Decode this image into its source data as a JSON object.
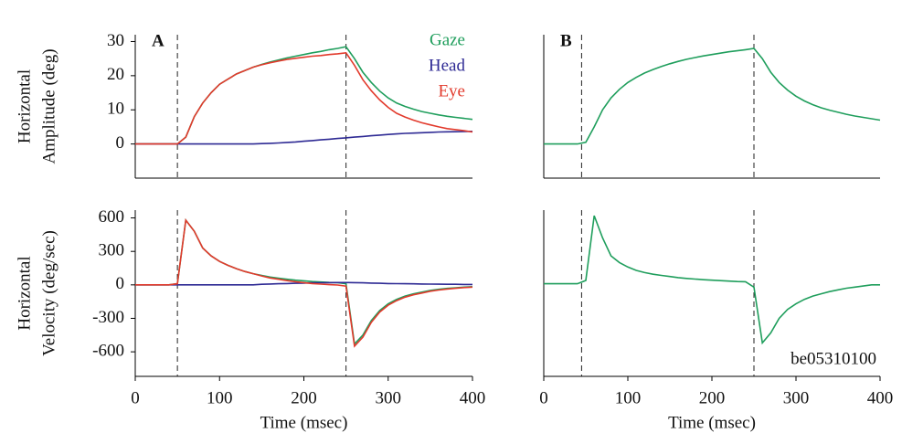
{
  "chart_data": [
    {
      "type": "line",
      "panel_label": "A",
      "y_label": [
        "Horizontal",
        "Amplitude (deg)"
      ],
      "legend": "upper right",
      "x": [
        0,
        10,
        20,
        30,
        40,
        50,
        60,
        70,
        80,
        90,
        100,
        110,
        120,
        130,
        140,
        150,
        160,
        170,
        180,
        190,
        200,
        210,
        220,
        230,
        240,
        250,
        260,
        270,
        280,
        290,
        300,
        310,
        320,
        330,
        340,
        350,
        360,
        370,
        380,
        390,
        400
      ],
      "xlim": [
        0,
        400
      ],
      "ylim": [
        -10,
        32
      ],
      "yticks": [
        0,
        10,
        20,
        30
      ],
      "vlines": [
        50,
        250
      ],
      "series": [
        {
          "name": "Gaze",
          "color": "#1f9e5c",
          "values": [
            0,
            0,
            0,
            0,
            0,
            0,
            2,
            8,
            12,
            15,
            17.5,
            19,
            20.5,
            21.5,
            22.5,
            23.3,
            24,
            24.6,
            25.2,
            25.7,
            26.2,
            26.7,
            27.1,
            27.6,
            28,
            28.5,
            25,
            21,
            18,
            15.5,
            13.5,
            12,
            11,
            10.2,
            9.5,
            9,
            8.5,
            8.1,
            7.8,
            7.5,
            7.2
          ]
        },
        {
          "name": "Head",
          "color": "#2e2a94",
          "values": [
            0,
            0,
            0,
            0,
            0,
            0,
            0,
            0,
            0,
            0,
            0,
            0,
            0,
            0,
            0,
            0.1,
            0.2,
            0.3,
            0.45,
            0.6,
            0.8,
            1,
            1.2,
            1.4,
            1.6,
            1.8,
            2,
            2.2,
            2.4,
            2.6,
            2.8,
            2.95,
            3.1,
            3.2,
            3.3,
            3.4,
            3.5,
            3.55,
            3.6,
            3.65,
            3.7
          ]
        },
        {
          "name": "Eye",
          "color": "#e23a2c",
          "values": [
            0,
            0,
            0,
            0,
            0,
            0,
            2,
            8,
            12,
            15,
            17.5,
            19,
            20.5,
            21.5,
            22.5,
            23.2,
            23.8,
            24.3,
            24.75,
            25.1,
            25.4,
            25.7,
            25.9,
            26.2,
            26.4,
            26.7,
            23,
            18.8,
            15.6,
            12.9,
            10.7,
            9,
            7.9,
            7,
            6.2,
            5.6,
            5,
            4.5,
            4.2,
            3.9,
            3.5
          ]
        }
      ]
    },
    {
      "type": "line",
      "panel_label": "B",
      "x": [
        0,
        10,
        20,
        30,
        40,
        50,
        60,
        70,
        80,
        90,
        100,
        110,
        120,
        130,
        140,
        150,
        160,
        170,
        180,
        190,
        200,
        210,
        220,
        230,
        240,
        250,
        260,
        270,
        280,
        290,
        300,
        310,
        320,
        330,
        340,
        350,
        360,
        370,
        380,
        390,
        400
      ],
      "xlim": [
        0,
        400
      ],
      "ylim": [
        -10,
        32
      ],
      "vlines": [
        45,
        250
      ],
      "series": [
        {
          "name": "Gaze",
          "color": "#1f9e5c",
          "values": [
            0,
            0,
            0,
            0,
            0,
            0.5,
            5,
            10,
            13.5,
            16,
            18,
            19.5,
            20.8,
            21.8,
            22.7,
            23.5,
            24.2,
            24.8,
            25.3,
            25.8,
            26.2,
            26.6,
            27,
            27.3,
            27.6,
            28,
            25,
            21,
            18,
            15.8,
            14,
            12.6,
            11.5,
            10.6,
            9.9,
            9.3,
            8.7,
            8.2,
            7.8,
            7.4,
            7
          ]
        }
      ]
    },
    {
      "type": "line",
      "y_label": [
        "Horizontal",
        "Velocity (deg/sec)"
      ],
      "x_label": "Time (msec)",
      "x": [
        0,
        10,
        20,
        30,
        40,
        50,
        60,
        70,
        80,
        90,
        100,
        110,
        120,
        130,
        140,
        150,
        160,
        170,
        180,
        190,
        200,
        210,
        220,
        230,
        240,
        250,
        260,
        270,
        280,
        290,
        300,
        310,
        320,
        330,
        340,
        350,
        360,
        370,
        380,
        390,
        400
      ],
      "xlim": [
        0,
        400
      ],
      "xticks": [
        0,
        100,
        200,
        300,
        400
      ],
      "ylim": [
        -820,
        670
      ],
      "yticks": [
        -600,
        -300,
        0,
        300,
        600
      ],
      "vlines": [
        50,
        250
      ],
      "series": [
        {
          "name": "Gaze",
          "color": "#1f9e5c",
          "values": [
            0,
            0,
            0,
            0,
            0,
            10,
            580,
            480,
            330,
            260,
            210,
            175,
            145,
            120,
            100,
            85,
            70,
            60,
            50,
            42,
            36,
            30,
            26,
            22,
            20,
            10,
            -530,
            -450,
            -320,
            -230,
            -170,
            -130,
            -100,
            -80,
            -65,
            -50,
            -40,
            -32,
            -26,
            -20,
            -16
          ]
        },
        {
          "name": "Head",
          "color": "#2e2a94",
          "values": [
            0,
            0,
            0,
            0,
            0,
            0,
            0,
            0,
            0,
            0,
            0,
            0,
            0,
            0,
            0,
            5,
            8,
            10,
            12,
            14,
            16,
            18,
            19,
            20,
            21,
            21,
            20,
            18,
            16,
            14,
            12,
            11,
            10,
            9,
            8,
            7,
            6,
            5,
            5,
            4,
            4
          ]
        },
        {
          "name": "Eye",
          "color": "#e23a2c",
          "values": [
            0,
            0,
            0,
            0,
            0,
            10,
            580,
            480,
            330,
            260,
            210,
            175,
            145,
            120,
            100,
            80,
            62,
            50,
            38,
            28,
            20,
            12,
            7,
            2,
            -1,
            -11,
            -550,
            -468,
            -336,
            -244,
            -182,
            -141,
            -110,
            -89,
            -73,
            -57,
            -46,
            -37,
            -31,
            -24,
            -20
          ]
        }
      ]
    },
    {
      "type": "line",
      "x_label": "Time (msec)",
      "annotation": "be05310100",
      "x": [
        0,
        10,
        20,
        30,
        40,
        50,
        60,
        70,
        80,
        90,
        100,
        110,
        120,
        130,
        140,
        150,
        160,
        170,
        180,
        190,
        200,
        210,
        220,
        230,
        240,
        250,
        260,
        270,
        280,
        290,
        300,
        310,
        320,
        330,
        340,
        350,
        360,
        370,
        380,
        390,
        400
      ],
      "xlim": [
        0,
        400
      ],
      "xticks": [
        0,
        100,
        200,
        300,
        400
      ],
      "ylim": [
        -820,
        670
      ],
      "vlines": [
        45,
        250
      ],
      "series": [
        {
          "name": "Gaze",
          "color": "#1f9e5c",
          "values": [
            10,
            10,
            10,
            10,
            10,
            40,
            620,
            420,
            260,
            200,
            160,
            130,
            110,
            95,
            85,
            75,
            65,
            58,
            52,
            46,
            42,
            38,
            34,
            30,
            28,
            -20,
            -520,
            -430,
            -300,
            -220,
            -170,
            -130,
            -100,
            -80,
            -60,
            -45,
            -30,
            -20,
            -10,
            0,
            0
          ]
        }
      ]
    }
  ]
}
